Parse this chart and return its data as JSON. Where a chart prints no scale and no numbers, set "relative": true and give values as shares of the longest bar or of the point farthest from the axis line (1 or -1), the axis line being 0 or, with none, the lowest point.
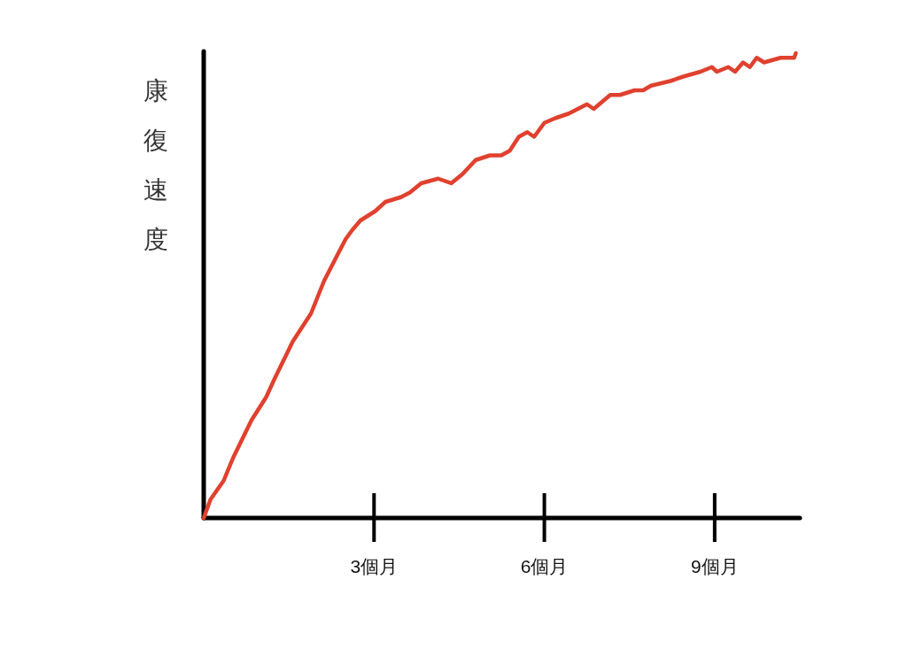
{
  "chart_data": {
    "type": "line",
    "ylabel": "康復速度",
    "relative": true,
    "x": [
      0,
      0.12,
      0.35,
      0.52,
      0.84,
      1.1,
      1.25,
      1.57,
      1.89,
      2.12,
      2.33,
      2.5,
      2.62,
      2.76,
      3.02,
      3.2,
      3.47,
      3.63,
      3.83,
      4.13,
      4.36,
      4.56,
      4.79,
      5.04,
      5.24,
      5.39,
      5.55,
      5.7,
      5.82,
      6.0,
      6.19,
      6.43,
      6.75,
      6.87,
      7.16,
      7.33,
      7.59,
      7.74,
      7.88,
      8.22,
      8.46,
      8.75,
      8.95,
      9.04,
      9.24,
      9.36,
      9.5,
      9.62,
      9.74,
      9.87,
      10.16,
      10.4,
      10.43
    ],
    "xlim": [
      0,
      10.5
    ],
    "xticks": [
      {
        "value": 3,
        "label": "3個月"
      },
      {
        "value": 6,
        "label": "6個月"
      },
      {
        "value": 9,
        "label": "9個月"
      }
    ],
    "line_style": "solid",
    "series": [
      {
        "color": "#e0412f",
        "values": [
          0,
          0.04,
          0.08,
          0.13,
          0.21,
          0.26,
          0.3,
          0.38,
          0.44,
          0.51,
          0.56,
          0.6,
          0.62,
          0.64,
          0.66,
          0.68,
          0.69,
          0.7,
          0.72,
          0.73,
          0.72,
          0.74,
          0.77,
          0.78,
          0.78,
          0.79,
          0.82,
          0.83,
          0.82,
          0.85,
          0.86,
          0.87,
          0.89,
          0.88,
          0.91,
          0.91,
          0.92,
          0.92,
          0.93,
          0.94,
          0.95,
          0.96,
          0.97,
          0.96,
          0.97,
          0.96,
          0.98,
          0.97,
          0.99,
          0.98,
          0.99,
          0.99,
          1
        ]
      }
    ]
  }
}
